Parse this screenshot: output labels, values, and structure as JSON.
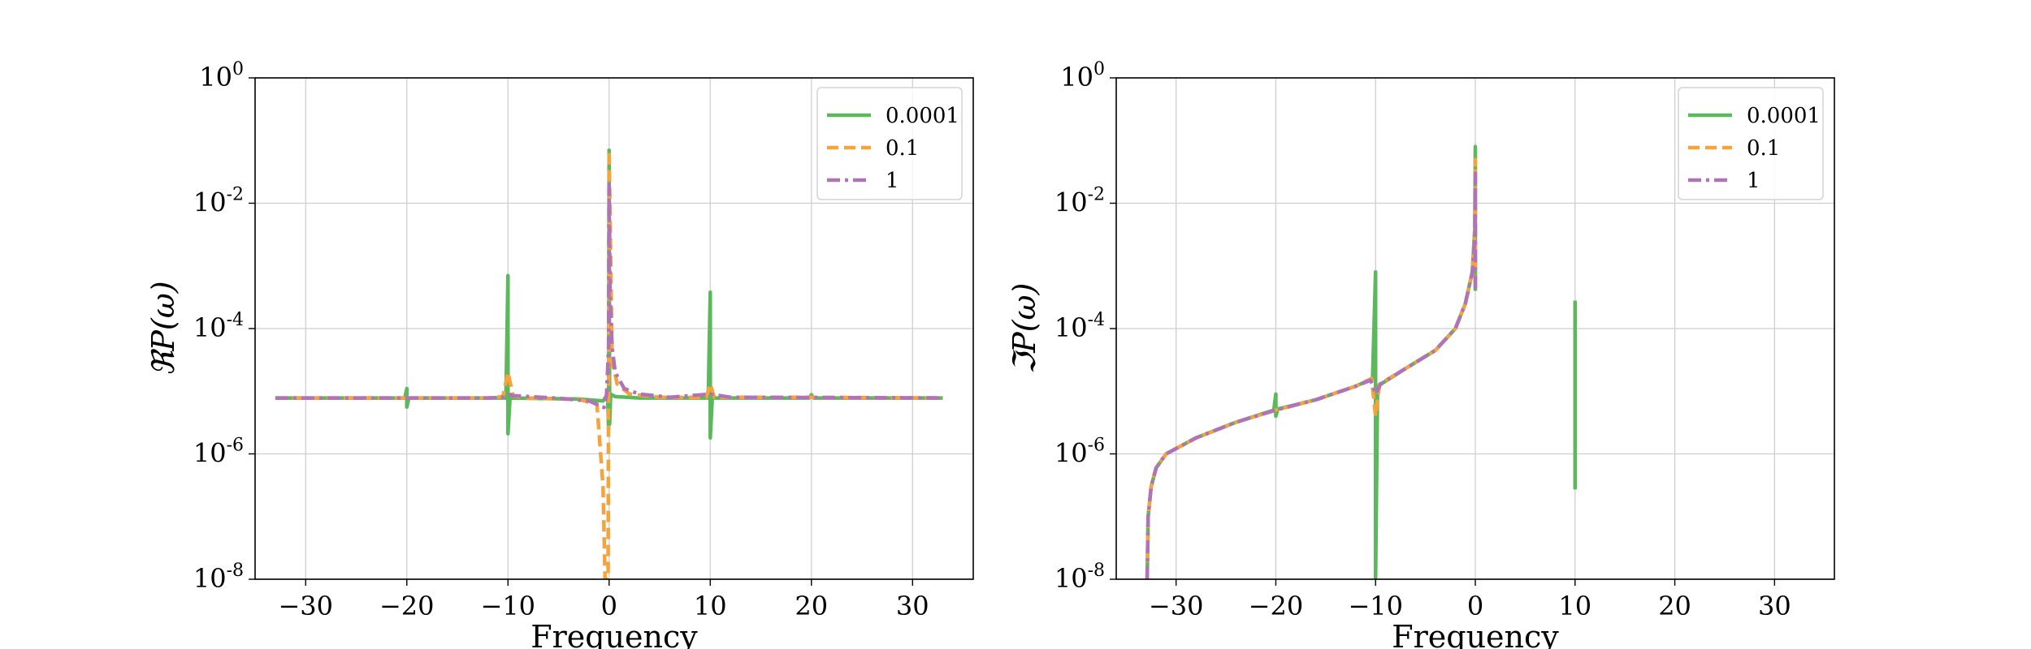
{
  "chart_data": [
    {
      "type": "line",
      "title": "",
      "xlabel": "Frequency",
      "ylabel": "ℜP(ω)",
      "yscale": "log",
      "xlim": [
        -35,
        36
      ],
      "ylim_exp": [
        -8,
        0
      ],
      "xticks": [
        -30,
        -20,
        -10,
        0,
        10,
        20,
        30
      ],
      "xtick_labels": [
        "−30",
        "−20",
        "−10",
        "0",
        "10",
        "20",
        "30"
      ],
      "ytick_labels": [
        {
          "base": "10",
          "exp": "0"
        },
        {
          "base": "10",
          "exp": "-2"
        },
        {
          "base": "10",
          "exp": "-4"
        },
        {
          "base": "10",
          "exp": "-6"
        },
        {
          "base": "10",
          "exp": "-8"
        }
      ],
      "grid": true,
      "legend_position": "top-right",
      "series": [
        {
          "name": "0.0001",
          "color": "#5cb85c",
          "dash": "solid",
          "points": [
            [
              -33,
              7.8e-06
            ],
            [
              -25,
              7.8e-06
            ],
            [
              -20.2,
              7.8e-06
            ],
            [
              -20,
              1.1e-05
            ],
            [
              -20,
              5.6e-06
            ],
            [
              -19.8,
              7.8e-06
            ],
            [
              -12,
              7.8e-06
            ],
            [
              -10.2,
              7.8e-06
            ],
            [
              -10,
              0.0007
            ],
            [
              -10,
              2.1e-06
            ],
            [
              -9.8,
              7.8e-06
            ],
            [
              -3,
              7.5e-06
            ],
            [
              -0.6,
              7e-06
            ],
            [
              -0.15,
              9e-06
            ],
            [
              -0.05,
              2.5e-06
            ],
            [
              0,
              0.07
            ],
            [
              0.05,
              3e-06
            ],
            [
              0.15,
              9e-06
            ],
            [
              0.6,
              8.2e-06
            ],
            [
              3,
              7.8e-06
            ],
            [
              9.8,
              7.8e-06
            ],
            [
              10,
              0.00038
            ],
            [
              10,
              1.8e-06
            ],
            [
              10.2,
              7.8e-06
            ],
            [
              19.8,
              7.8e-06
            ],
            [
              20,
              8.8e-06
            ],
            [
              20.2,
              7.8e-06
            ],
            [
              33,
              7.8e-06
            ]
          ]
        },
        {
          "name": "0.1",
          "color": "#f5a33a",
          "dash": "dashed",
          "points": [
            [
              -33,
              7.8e-06
            ],
            [
              -12,
              7.8e-06
            ],
            [
              -10.5,
              8.2e-06
            ],
            [
              -10,
              2e-05
            ],
            [
              -9.5,
              8.4e-06
            ],
            [
              -8,
              7.8e-06
            ],
            [
              -3,
              7.4e-06
            ],
            [
              -1.2,
              6.2e-06
            ],
            [
              -0.6,
              3e-07
            ],
            [
              -0.4,
              1e-08
            ],
            [
              -0.1,
              1e-08
            ],
            [
              0,
              0.07
            ],
            [
              0.3,
              3e-05
            ],
            [
              0.8,
              1.3e-05
            ],
            [
              2,
              9e-06
            ],
            [
              5,
              8e-06
            ],
            [
              9.6,
              8e-06
            ],
            [
              10,
              1.3e-05
            ],
            [
              10.4,
              8e-06
            ],
            [
              20,
              8e-06
            ],
            [
              33,
              7.8e-06
            ]
          ]
        },
        {
          "name": "1",
          "color": "#b073b8",
          "dash": "dashdot",
          "points": [
            [
              -33,
              7.8e-06
            ],
            [
              -12,
              7.8e-06
            ],
            [
              -10.5,
              8e-06
            ],
            [
              -10,
              9e-06
            ],
            [
              -9.5,
              8.5e-06
            ],
            [
              -5,
              7.7e-06
            ],
            [
              -2,
              7e-06
            ],
            [
              -1,
              6e-06
            ],
            [
              -0.5,
              5.5e-06
            ],
            [
              -0.25,
              9e-06
            ],
            [
              -0.05,
              5e-05
            ],
            [
              0,
              0.02
            ],
            [
              0.1,
              0.0003
            ],
            [
              0.3,
              5e-05
            ],
            [
              0.6,
              2e-05
            ],
            [
              1.5,
              1.1e-05
            ],
            [
              3,
              9e-06
            ],
            [
              6,
              8e-06
            ],
            [
              10,
              9e-06
            ],
            [
              12,
              8e-06
            ],
            [
              33,
              7.8e-06
            ]
          ]
        }
      ]
    },
    {
      "type": "line",
      "title": "",
      "xlabel": "Frequency",
      "ylabel": "ℑP(ω)",
      "yscale": "log",
      "xlim": [
        -36,
        36
      ],
      "ylim_exp": [
        -8,
        0
      ],
      "xticks": [
        -30,
        -20,
        -10,
        0,
        10,
        20,
        30
      ],
      "xtick_labels": [
        "−30",
        "−20",
        "−10",
        "0",
        "10",
        "20",
        "30"
      ],
      "ytick_labels": [
        {
          "base": "10",
          "exp": "0"
        },
        {
          "base": "10",
          "exp": "-2"
        },
        {
          "base": "10",
          "exp": "-4"
        },
        {
          "base": "10",
          "exp": "-6"
        },
        {
          "base": "10",
          "exp": "-8"
        }
      ],
      "grid": true,
      "legend_position": "top-right",
      "series": [
        {
          "name": "0.0001",
          "color": "#5cb85c",
          "dash": "solid",
          "points": [
            [
              -32.9,
              1e-08
            ],
            [
              -32.8,
              1e-07
            ],
            [
              -32.5,
              3e-07
            ],
            [
              -32,
              6e-07
            ],
            [
              -31,
              1e-06
            ],
            [
              -28,
              1.8e-06
            ],
            [
              -24,
              3.2e-06
            ],
            [
              -20.2,
              5e-06
            ],
            [
              -20,
              9e-06
            ],
            [
              -20,
              4e-06
            ],
            [
              -19.8,
              5.2e-06
            ],
            [
              -16,
              7.3e-06
            ],
            [
              -12,
              1.2e-05
            ],
            [
              -10.3,
              1.6e-05
            ],
            [
              -10,
              0.0008
            ],
            [
              -10,
              1e-08
            ],
            [
              -9.8,
              1.2e-05
            ],
            [
              -7,
              2.3e-05
            ],
            [
              -4,
              4.5e-05
            ],
            [
              -2,
              0.0001
            ],
            [
              -1,
              0.00025
            ],
            [
              -0.3,
              0.0008
            ],
            [
              -0.05,
              0.004
            ],
            [
              0,
              0.08
            ],
            [
              0,
              0.0004
            ]
          ]
        },
        {
          "name": "0.1",
          "color": "#f5a33a",
          "dash": "dashed",
          "points": [
            [
              -32.9,
              1e-08
            ],
            [
              -32.8,
              1e-07
            ],
            [
              -32.5,
              3e-07
            ],
            [
              -32,
              6e-07
            ],
            [
              -31,
              1e-06
            ],
            [
              -28,
              1.8e-06
            ],
            [
              -24,
              3.2e-06
            ],
            [
              -20,
              5e-06
            ],
            [
              -16,
              7.3e-06
            ],
            [
              -12,
              1.2e-05
            ],
            [
              -10.4,
              1.6e-05
            ],
            [
              -10,
              4e-06
            ],
            [
              -9.6,
              1.3e-05
            ],
            [
              -7,
              2.3e-05
            ],
            [
              -4,
              4.5e-05
            ],
            [
              -2,
              0.0001
            ],
            [
              -1,
              0.00025
            ],
            [
              -0.3,
              0.0008
            ],
            [
              -0.05,
              0.004
            ],
            [
              0,
              0.05
            ],
            [
              0,
              0.0005
            ]
          ]
        },
        {
          "name": "1",
          "color": "#b073b8",
          "dash": "dashdot",
          "points": [
            [
              -32.9,
              1e-08
            ],
            [
              -32.8,
              1e-07
            ],
            [
              -32.5,
              3e-07
            ],
            [
              -32,
              6e-07
            ],
            [
              -31,
              1e-06
            ],
            [
              -28,
              1.8e-06
            ],
            [
              -24,
              3.2e-06
            ],
            [
              -20,
              5e-06
            ],
            [
              -16,
              7.3e-06
            ],
            [
              -12,
              1.2e-05
            ],
            [
              -10.5,
              1.5e-05
            ],
            [
              -10,
              9e-06
            ],
            [
              -9.5,
              1.3e-05
            ],
            [
              -7,
              2.3e-05
            ],
            [
              -4,
              4.5e-05
            ],
            [
              -2,
              0.0001
            ],
            [
              -1,
              0.00025
            ],
            [
              -0.3,
              0.0008
            ],
            [
              -0.05,
              0.003
            ],
            [
              0,
              0.03
            ],
            [
              0,
              0.0004
            ]
          ]
        }
      ],
      "extra_segments": [
        {
          "series": "0.0001",
          "color": "#5cb85c",
          "points": [
            [
              10,
              0.00028
            ],
            [
              10,
              2.7e-07
            ]
          ]
        }
      ]
    }
  ]
}
